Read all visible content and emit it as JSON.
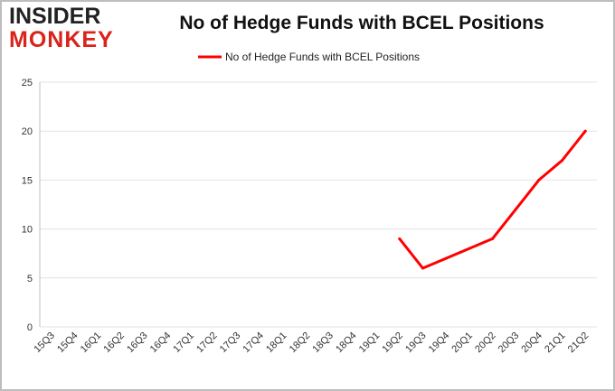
{
  "logo": {
    "line1": "INSIDER",
    "line2": "MONKEY"
  },
  "chart_data": {
    "type": "line",
    "title": "No of Hedge Funds with BCEL Positions",
    "xlabel": "",
    "ylabel": "",
    "ylim": [
      0,
      25
    ],
    "yticks": [
      0,
      5,
      10,
      15,
      20,
      25
    ],
    "grid": true,
    "legend": "top-center",
    "categories": [
      "15Q3",
      "15Q4",
      "16Q1",
      "16Q2",
      "16Q3",
      "16Q4",
      "17Q1",
      "17Q2",
      "17Q3",
      "17Q4",
      "18Q1",
      "18Q2",
      "18Q3",
      "18Q4",
      "19Q1",
      "19Q2",
      "19Q3",
      "19Q4",
      "20Q1",
      "20Q2",
      "20Q3",
      "20Q4",
      "21Q1",
      "21Q2"
    ],
    "series": [
      {
        "name": "No of Hedge Funds with BCEL Positions",
        "color": "#ff0000",
        "values": [
          null,
          null,
          null,
          null,
          null,
          null,
          null,
          null,
          null,
          null,
          null,
          null,
          null,
          null,
          null,
          9,
          6,
          7,
          8,
          9,
          12,
          15,
          17,
          20
        ]
      }
    ]
  }
}
